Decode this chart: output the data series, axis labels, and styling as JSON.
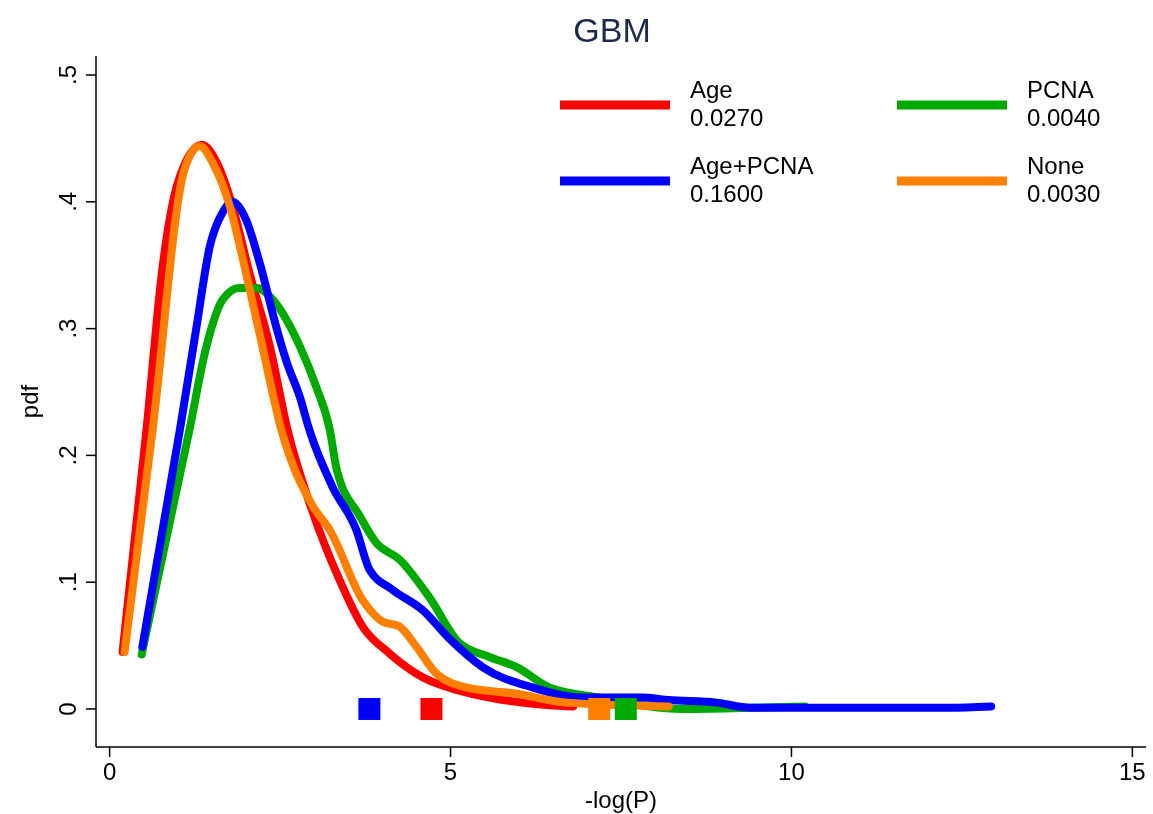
{
  "chart_data": {
    "type": "line",
    "title": "GBM",
    "xlabel": "-log(P)",
    "ylabel": "pdf",
    "xlim": [
      -0.2,
      15.2
    ],
    "ylim": [
      -0.03,
      0.515
    ],
    "xticks": [
      0,
      5,
      10,
      15
    ],
    "yticks": [
      0,
      {
        "value": 0.1,
        "label": ".1"
      },
      {
        "value": 0.2,
        "label": ".2"
      },
      {
        "value": 0.3,
        "label": ".3"
      },
      {
        "value": 0.4,
        "label": ".4"
      },
      {
        "value": 0.5,
        "label": ".5"
      }
    ],
    "grid": false,
    "legend": "top right",
    "line_style": "solid",
    "series": [
      {
        "name": "Age\n0.0270",
        "color": "#ff0000",
        "x": [
          0.19,
          0.54,
          0.78,
          1.0,
          1.35,
          1.58,
          1.8,
          2.05,
          2.35,
          2.61,
          2.98,
          3.37,
          3.71,
          4.1,
          4.59,
          5.09,
          5.57,
          6.45,
          6.8
        ],
        "values": [
          0.045,
          0.22,
          0.35,
          0.415,
          0.445,
          0.43,
          0.397,
          0.344,
          0.286,
          0.22,
          0.155,
          0.102,
          0.065,
          0.044,
          0.025,
          0.015,
          0.009,
          0.003,
          0.002
        ]
      },
      {
        "name": "PCNA\n0.0040",
        "color": "#00aa00",
        "x": [
          0.47,
          1.17,
          1.42,
          1.66,
          1.9,
          2.16,
          2.39,
          2.79,
          3.03,
          3.23,
          3.33,
          3.67,
          3.91,
          4.25,
          4.69,
          5.13,
          5.57,
          5.97,
          6.45,
          7.18,
          8.4,
          9.4,
          10.2
        ],
        "values": [
          0.043,
          0.22,
          0.286,
          0.323,
          0.332,
          0.332,
          0.323,
          0.286,
          0.254,
          0.22,
          0.189,
          0.152,
          0.131,
          0.118,
          0.088,
          0.052,
          0.041,
          0.033,
          0.017,
          0.009,
          0.0,
          0.001,
          0.002
        ]
      },
      {
        "name": "Age+PCNA\n0.1600",
        "color": "#0000ff",
        "x": [
          0.48,
          1.03,
          1.27,
          1.47,
          1.66,
          1.8,
          2.0,
          2.2,
          2.45,
          2.6,
          2.79,
          2.93,
          3.27,
          3.62,
          3.81,
          4.15,
          4.59,
          4.99,
          5.47,
          6.2,
          6.94,
          7.8,
          8.2,
          8.9,
          9.4,
          12.3,
          12.93
        ],
        "values": [
          0.049,
          0.22,
          0.3,
          0.365,
          0.392,
          0.4,
          0.386,
          0.352,
          0.3,
          0.273,
          0.246,
          0.22,
          0.175,
          0.141,
          0.11,
          0.094,
          0.078,
          0.055,
          0.033,
          0.017,
          0.009,
          0.009,
          0.007,
          0.005,
          0.001,
          0.001,
          0.002
        ]
      },
      {
        "name": "None\n0.0030",
        "color": "#ff8000",
        "x": [
          0.22,
          0.63,
          1.1,
          1.32,
          1.51,
          1.76,
          2.0,
          2.24,
          2.52,
          2.98,
          3.23,
          3.71,
          4.0,
          4.25,
          4.5,
          4.79,
          5.23,
          5.97,
          6.7,
          8.2
        ],
        "values": [
          0.045,
          0.22,
          0.426,
          0.444,
          0.431,
          0.397,
          0.344,
          0.286,
          0.22,
          0.16,
          0.141,
          0.086,
          0.069,
          0.065,
          0.049,
          0.028,
          0.017,
          0.012,
          0.005,
          0.002
        ]
      },
      {
        "type": "scatter",
        "marker": "square",
        "color": "#0000ff",
        "x": [
          3.81
        ],
        "values": [
          0
        ]
      },
      {
        "type": "scatter",
        "marker": "square",
        "color": "#ff0000",
        "x": [
          4.72
        ],
        "values": [
          0
        ]
      },
      {
        "type": "scatter",
        "marker": "square",
        "color": "#ff8000",
        "x": [
          7.18
        ],
        "values": [
          0
        ]
      },
      {
        "type": "scatter",
        "marker": "square",
        "color": "#00aa00",
        "x": [
          7.57
        ],
        "values": [
          0
        ]
      }
    ]
  }
}
